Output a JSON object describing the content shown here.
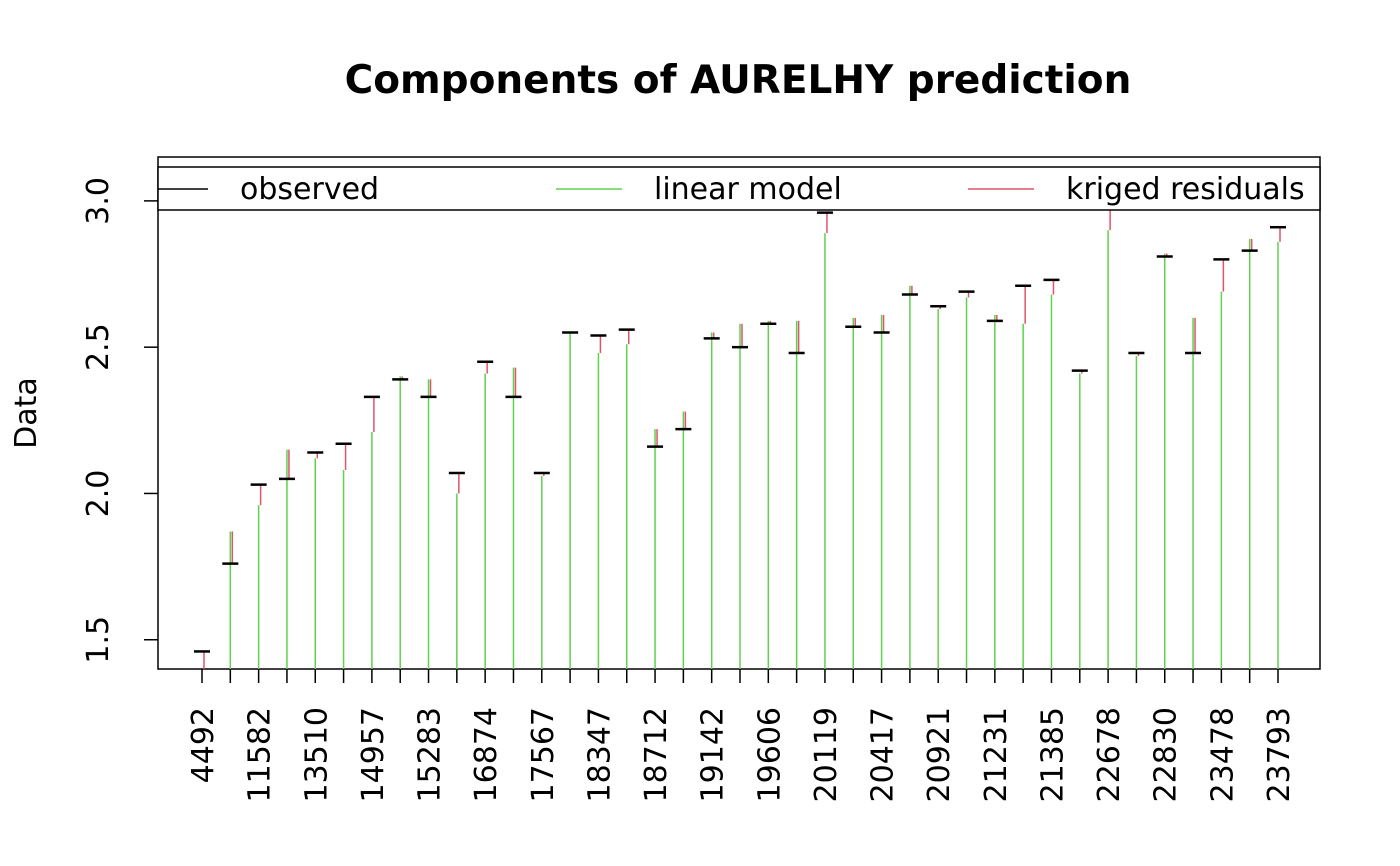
{
  "chart_data": {
    "type": "bar",
    "title": "Components of AURELHY prediction",
    "xlabel": "",
    "ylabel": "Data",
    "ylim": [
      1.4,
      3.15
    ],
    "yticks": [
      1.5,
      2.0,
      2.5,
      3.0
    ],
    "grid": false,
    "legend": {
      "placement": "top",
      "entries": [
        {
          "label": "observed",
          "color": "#000000"
        },
        {
          "label": "linear model",
          "color": "#61D04F"
        },
        {
          "label": "kriged residuals",
          "color": "#DF536B"
        }
      ]
    },
    "categories": [
      "4492",
      "",
      "11582",
      "",
      "13510",
      "",
      "14957",
      "",
      "15283",
      "",
      "16874",
      "",
      "17567",
      "",
      "18347",
      "",
      "18712",
      "",
      "19142",
      "",
      "19606",
      "",
      "20119",
      "",
      "20417",
      "",
      "20921",
      "",
      "21231",
      "",
      "21385",
      "",
      "22678",
      "",
      "22830",
      "",
      "23478",
      "",
      "23793"
    ],
    "series": [
      {
        "name": "observed",
        "color": "#000000",
        "values": [
          1.46,
          1.76,
          2.03,
          2.05,
          2.14,
          2.17,
          2.33,
          2.39,
          2.33,
          2.07,
          2.45,
          2.33,
          2.07,
          2.55,
          2.54,
          2.56,
          2.16,
          2.22,
          2.53,
          2.5,
          2.58,
          2.48,
          2.96,
          2.57,
          2.55,
          2.68,
          2.64,
          2.69,
          2.59,
          2.71,
          2.73,
          2.42,
          2.98,
          2.48,
          2.81,
          2.48,
          2.8,
          2.83,
          2.91
        ]
      },
      {
        "name": "linear model",
        "color": "#61D04F",
        "values": [
          1.4,
          1.87,
          1.96,
          2.15,
          2.12,
          2.08,
          2.21,
          2.4,
          2.39,
          2.0,
          2.41,
          2.43,
          2.06,
          2.55,
          2.48,
          2.51,
          2.22,
          2.28,
          2.55,
          2.58,
          2.59,
          2.59,
          2.89,
          2.6,
          2.61,
          2.71,
          2.63,
          2.67,
          2.61,
          2.58,
          2.68,
          2.41,
          2.9,
          2.47,
          2.82,
          2.6,
          2.69,
          2.87,
          2.86
        ]
      },
      {
        "name": "kriged residuals",
        "color": "#DF536B",
        "values": [
          0.06,
          -0.11,
          0.07,
          -0.1,
          0.02,
          0.09,
          0.12,
          -0.01,
          -0.06,
          0.07,
          0.04,
          -0.1,
          0.01,
          0.0,
          0.06,
          0.05,
          -0.06,
          -0.06,
          -0.02,
          -0.08,
          -0.01,
          -0.11,
          0.07,
          -0.03,
          -0.06,
          -0.03,
          0.01,
          0.02,
          -0.02,
          0.13,
          0.05,
          0.01,
          0.08,
          0.01,
          -0.01,
          -0.12,
          0.11,
          -0.04,
          0.05
        ]
      }
    ]
  }
}
